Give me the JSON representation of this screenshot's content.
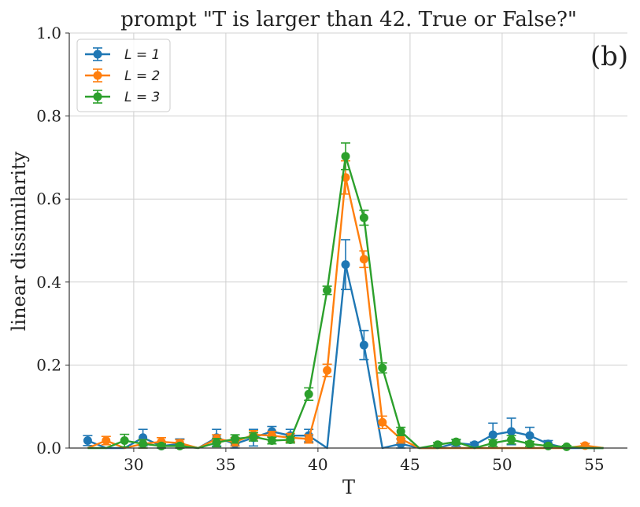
{
  "chart_data": {
    "type": "line",
    "title": "prompt \"T is larger than 42. True or False?\"",
    "panel_label": "(b)",
    "xlabel": "T",
    "ylabel": "linear dissimilarity",
    "xlim": [
      26.5,
      56.8
    ],
    "ylim": [
      0,
      1.0
    ],
    "xticks": [
      30,
      35,
      40,
      45,
      50,
      55
    ],
    "yticks": [
      0.0,
      0.2,
      0.4,
      0.6,
      0.8,
      1.0
    ],
    "xtick_labels": [
      "30",
      "35",
      "40",
      "45",
      "50",
      "55"
    ],
    "ytick_labels": [
      "0.0",
      "0.2",
      "0.4",
      "0.6",
      "0.8",
      "1.0"
    ],
    "grid": true,
    "legend_position": "top-left",
    "x": [
      27.5,
      28.5,
      29.5,
      30.5,
      31.5,
      32.5,
      33.5,
      34.5,
      35.5,
      36.5,
      37.5,
      38.5,
      39.5,
      40.5,
      41.5,
      42.5,
      43.5,
      44.5,
      45.5,
      46.5,
      47.5,
      48.5,
      49.5,
      50.5,
      51.5,
      52.5,
      53.5,
      54.5,
      55.5
    ],
    "series": [
      {
        "name": "L = 1",
        "color": "#1f77b4",
        "values": [
          0.018,
          0.0,
          0.0,
          0.025,
          0.005,
          0.01,
          0.0,
          0.025,
          0.01,
          0.025,
          0.04,
          0.03,
          0.03,
          0.0,
          0.442,
          0.248,
          0.0,
          0.01,
          0.0,
          0.0,
          0.012,
          0.008,
          0.032,
          0.04,
          0.03,
          0.01,
          0.0,
          0.0,
          0.0
        ],
        "errors": [
          0.012,
          0.0,
          0.0,
          0.02,
          0.01,
          0.012,
          0.0,
          0.02,
          0.01,
          0.02,
          0.012,
          0.015,
          0.015,
          0.0,
          0.06,
          0.035,
          0.0,
          0.012,
          0.0,
          0.0,
          0.008,
          0.006,
          0.028,
          0.032,
          0.02,
          0.008,
          0.0,
          0.0,
          0.0
        ]
      },
      {
        "name": "L = 2",
        "color": "#ff7f0e",
        "values": [
          0.0,
          0.018,
          0.0,
          0.01,
          0.015,
          0.012,
          0.0,
          0.022,
          0.015,
          0.032,
          0.03,
          0.025,
          0.022,
          0.187,
          0.652,
          0.455,
          0.062,
          0.022,
          0.0,
          0.0,
          0.0,
          0.0,
          0.0,
          0.0,
          0.0,
          0.0,
          0.0,
          0.006,
          0.0
        ],
        "errors": [
          0.0,
          0.01,
          0.0,
          0.01,
          0.01,
          0.008,
          0.0,
          0.01,
          0.01,
          0.01,
          0.01,
          0.01,
          0.01,
          0.015,
          0.04,
          0.02,
          0.015,
          0.01,
          0.0,
          0.0,
          0.0,
          0.0,
          0.0,
          0.0,
          0.0,
          0.0,
          0.0,
          0.005,
          0.0
        ],
        "points_shown": [
          28.5,
          30.5,
          31.5,
          32.5,
          34.5,
          35.5,
          36.5,
          37.5,
          38.5,
          39.5,
          40.5,
          41.5,
          42.5,
          43.5,
          44.5,
          54.5
        ]
      },
      {
        "name": "L = 3",
        "color": "#2ca02c",
        "values": [
          0.0,
          0.0,
          0.018,
          0.01,
          0.005,
          0.005,
          0.0,
          0.013,
          0.022,
          0.027,
          0.018,
          0.02,
          0.13,
          0.38,
          0.703,
          0.555,
          0.193,
          0.04,
          0.0,
          0.008,
          0.015,
          0.0,
          0.012,
          0.02,
          0.01,
          0.005,
          0.003,
          0.0,
          0.0
        ],
        "errors": [
          0.0,
          0.0,
          0.015,
          0.01,
          0.005,
          0.005,
          0.0,
          0.01,
          0.01,
          0.01,
          0.008,
          0.008,
          0.015,
          0.01,
          0.032,
          0.018,
          0.012,
          0.01,
          0.0,
          0.005,
          0.006,
          0.0,
          0.008,
          0.01,
          0.006,
          0.004,
          0.003,
          0.0,
          0.0
        ],
        "points_shown": [
          29.5,
          30.5,
          31.5,
          32.5,
          34.5,
          35.5,
          36.5,
          37.5,
          38.5,
          39.5,
          40.5,
          41.5,
          42.5,
          43.5,
          44.5,
          46.5,
          47.5,
          49.5,
          50.5,
          51.5,
          52.5,
          53.5
        ]
      }
    ]
  }
}
